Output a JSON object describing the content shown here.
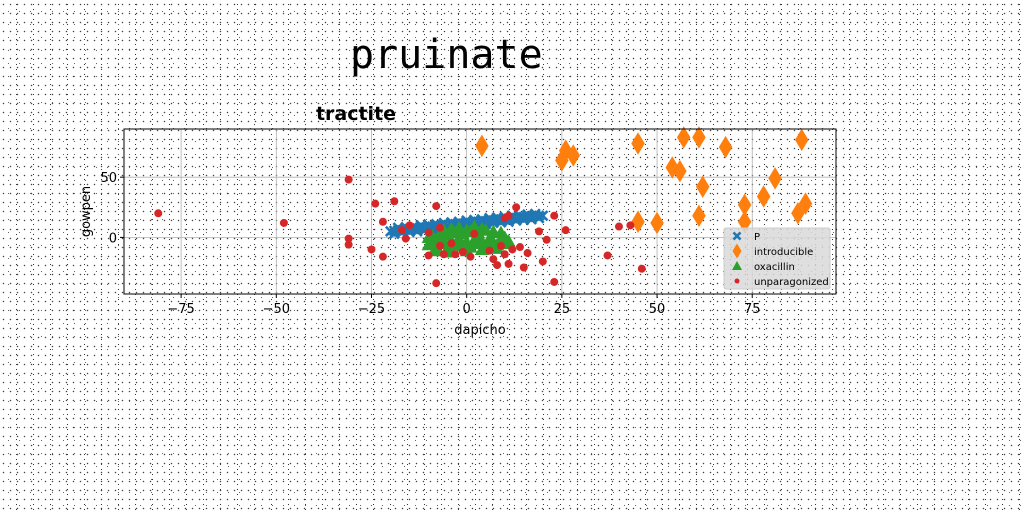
{
  "page": {
    "title": "pruinate"
  },
  "chart_data": {
    "type": "scatter",
    "title": "tractite",
    "xlabel": "dapicho",
    "ylabel": "gowpen",
    "xlim": [
      -90,
      97
    ],
    "ylim": [
      -47,
      90
    ],
    "xticks": [
      -75,
      -50,
      -25,
      0,
      25,
      50,
      75
    ],
    "xtick_labels": [
      "−75",
      "−50",
      "−25",
      "0",
      "25",
      "50",
      "75"
    ],
    "yticks": [
      0,
      50
    ],
    "ytick_labels": [
      "0",
      "50"
    ],
    "grid": true,
    "legend_position": "lower-right",
    "series": [
      {
        "name": "P",
        "marker": "x",
        "color": "#1f77b4",
        "points": [
          [
            -20,
            5
          ],
          [
            -19,
            5.5
          ],
          [
            -18,
            6
          ],
          [
            -17,
            6
          ],
          [
            -16,
            6.5
          ],
          [
            -15,
            7
          ],
          [
            -14,
            7
          ],
          [
            -13,
            7.5
          ],
          [
            -12,
            8
          ],
          [
            -11,
            8
          ],
          [
            -10,
            8.5
          ],
          [
            -9,
            9
          ],
          [
            -8,
            9
          ],
          [
            -7,
            9.5
          ],
          [
            -6,
            10
          ],
          [
            -5,
            10
          ],
          [
            -4,
            10.5
          ],
          [
            -3,
            11
          ],
          [
            -2,
            11
          ],
          [
            -1,
            11.5
          ],
          [
            0,
            12
          ],
          [
            1,
            12
          ],
          [
            2,
            12.5
          ],
          [
            3,
            13
          ],
          [
            4,
            13
          ],
          [
            5,
            13.5
          ],
          [
            6,
            14
          ],
          [
            7,
            14
          ],
          [
            8,
            14.5
          ],
          [
            9,
            15
          ],
          [
            10,
            15
          ],
          [
            11,
            15.5
          ],
          [
            12,
            16
          ],
          [
            13,
            16
          ],
          [
            14,
            16.5
          ],
          [
            15,
            17
          ],
          [
            16,
            17
          ],
          [
            17,
            17.5
          ],
          [
            18,
            18
          ],
          [
            19,
            18
          ],
          [
            20,
            18
          ],
          [
            -19,
            3
          ],
          [
            -17,
            4
          ],
          [
            -15,
            4.5
          ],
          [
            -13,
            5
          ],
          [
            -11,
            6
          ],
          [
            -9,
            6.5
          ],
          [
            -7,
            7
          ],
          [
            -5,
            8
          ],
          [
            -3,
            8.5
          ],
          [
            -1,
            9
          ],
          [
            1,
            10
          ],
          [
            3,
            10.5
          ],
          [
            5,
            11
          ],
          [
            7,
            12
          ],
          [
            9,
            12.5
          ],
          [
            11,
            13
          ],
          [
            13,
            14
          ],
          [
            15,
            14.5
          ],
          [
            17,
            15
          ],
          [
            19,
            16
          ],
          [
            -18,
            8
          ],
          [
            -16,
            8.5
          ],
          [
            -14,
            9
          ],
          [
            -12,
            10
          ],
          [
            -10,
            10.5
          ],
          [
            -8,
            11
          ],
          [
            -6,
            12
          ],
          [
            -4,
            12.5
          ],
          [
            -2,
            13
          ],
          [
            0,
            14
          ],
          [
            2,
            14.5
          ],
          [
            4,
            15
          ],
          [
            6,
            16
          ],
          [
            8,
            16.5
          ],
          [
            10,
            17
          ],
          [
            12,
            18
          ],
          [
            14,
            18
          ],
          [
            16,
            19
          ],
          [
            18,
            19.5
          ]
        ]
      },
      {
        "name": "introducible",
        "marker": "diamond",
        "color": "#ff7f0e",
        "points": [
          [
            4,
            76
          ],
          [
            25,
            64
          ],
          [
            26,
            72
          ],
          [
            28,
            68
          ],
          [
            45,
            78
          ],
          [
            57,
            83
          ],
          [
            61,
            83
          ],
          [
            68,
            75
          ],
          [
            54,
            58
          ],
          [
            56,
            55
          ],
          [
            62,
            42
          ],
          [
            45,
            13
          ],
          [
            50,
            12
          ],
          [
            61,
            18
          ],
          [
            73,
            27
          ],
          [
            78,
            34
          ],
          [
            81,
            49
          ],
          [
            87,
            20
          ],
          [
            89,
            28
          ],
          [
            88,
            81
          ],
          [
            73,
            13
          ]
        ]
      },
      {
        "name": "oxacillin",
        "marker": "triangle",
        "color": "#2ca02c",
        "points": [
          [
            -10,
            -6
          ],
          [
            -9,
            -3
          ],
          [
            -8,
            -8
          ],
          [
            -7,
            -2
          ],
          [
            -6,
            -5
          ],
          [
            -5,
            -9
          ],
          [
            -4,
            -3
          ],
          [
            -3,
            -6
          ],
          [
            -2,
            -1
          ],
          [
            -1,
            -7
          ],
          [
            0,
            -4
          ],
          [
            1,
            -8
          ],
          [
            2,
            -2
          ],
          [
            3,
            -5
          ],
          [
            4,
            -3
          ],
          [
            5,
            -7
          ],
          [
            6,
            -1
          ],
          [
            7,
            -4
          ],
          [
            8,
            -6
          ],
          [
            9,
            -2
          ],
          [
            10,
            -5
          ],
          [
            11,
            -3
          ],
          [
            -9,
            1
          ],
          [
            -7,
            3
          ],
          [
            -5,
            2
          ],
          [
            -3,
            4
          ],
          [
            -1,
            3
          ],
          [
            1,
            5
          ],
          [
            3,
            4
          ],
          [
            5,
            6
          ],
          [
            7,
            5
          ],
          [
            9,
            4
          ],
          [
            -8,
            -11
          ],
          [
            -4,
            -12
          ],
          [
            0,
            -11
          ],
          [
            4,
            -10
          ],
          [
            8,
            -9
          ],
          [
            -6,
            6
          ],
          [
            -2,
            8
          ],
          [
            2,
            9
          ],
          [
            -10,
            0
          ],
          [
            -6,
            -3
          ],
          [
            -2,
            -4
          ],
          [
            2,
            -3
          ],
          [
            6,
            -4
          ],
          [
            10,
            0
          ],
          [
            -4,
            7
          ],
          [
            0,
            6
          ],
          [
            4,
            7
          ]
        ]
      },
      {
        "name": "unparagonized",
        "marker": "circle",
        "color": "#d62728",
        "points": [
          [
            -81,
            20
          ],
          [
            -48,
            12
          ],
          [
            -31,
            48
          ],
          [
            -31,
            -1
          ],
          [
            -31,
            -6
          ],
          [
            -25,
            -10
          ],
          [
            -24,
            28
          ],
          [
            -22,
            13
          ],
          [
            -22,
            -16
          ],
          [
            -19,
            30
          ],
          [
            -17,
            6
          ],
          [
            -16,
            -1
          ],
          [
            -15,
            10
          ],
          [
            -10,
            -15
          ],
          [
            -10,
            4
          ],
          [
            -8,
            26
          ],
          [
            -8,
            -38
          ],
          [
            -7,
            8
          ],
          [
            -7,
            -7
          ],
          [
            -6,
            -14
          ],
          [
            -4,
            -5
          ],
          [
            -3,
            -14
          ],
          [
            -1,
            -12
          ],
          [
            1,
            -16
          ],
          [
            2,
            3
          ],
          [
            6,
            -11
          ],
          [
            7,
            -18
          ],
          [
            8,
            -23
          ],
          [
            9,
            -7
          ],
          [
            10,
            -14
          ],
          [
            10,
            16
          ],
          [
            11,
            18
          ],
          [
            11,
            -22
          ],
          [
            12,
            -10
          ],
          [
            13,
            25
          ],
          [
            14,
            -8
          ],
          [
            15,
            -25
          ],
          [
            16,
            -13
          ],
          [
            19,
            5
          ],
          [
            20,
            -20
          ],
          [
            21,
            -2
          ],
          [
            23,
            18
          ],
          [
            23,
            -37
          ],
          [
            26,
            6
          ],
          [
            37,
            -15
          ],
          [
            40,
            9
          ],
          [
            43,
            10
          ],
          [
            46,
            -26
          ]
        ]
      }
    ]
  }
}
